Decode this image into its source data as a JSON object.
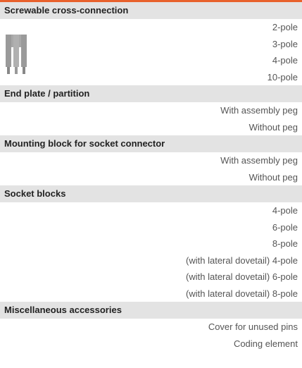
{
  "sections": [
    {
      "title": "Screwable cross-connection",
      "items": [
        "2-pole",
        "3-pole",
        "4-pole",
        "10-pole"
      ]
    },
    {
      "title": "End plate / partition",
      "items": [
        "With assembly peg",
        "Without peg"
      ]
    },
    {
      "title": "Mounting block for socket connector",
      "items": [
        "With assembly peg",
        "Without peg"
      ]
    },
    {
      "title": "Socket blocks",
      "items": [
        "4-pole",
        "6-pole",
        "8-pole",
        "(with lateral dovetail) 4-pole",
        "(with lateral dovetail) 6-pole",
        "(with lateral dovetail) 8-pole"
      ]
    },
    {
      "title": "Miscellaneous accessories",
      "items": [
        "Cover for unused pins",
        "Coding element"
      ]
    }
  ]
}
